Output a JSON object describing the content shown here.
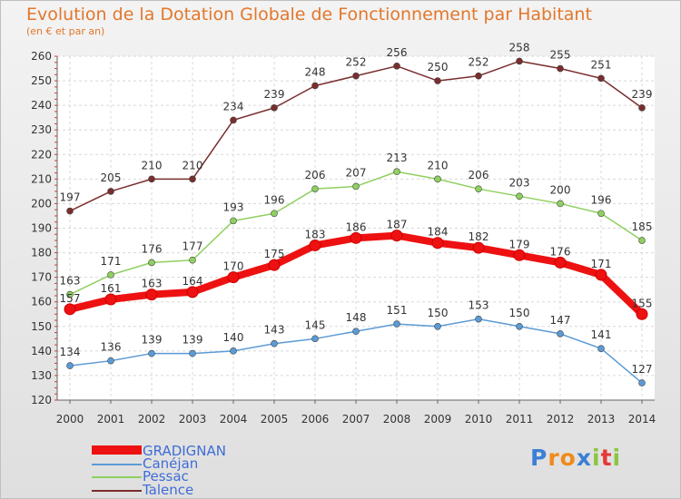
{
  "title": "Evolution de la Dotation Globale de Fonctionnement par Habitant",
  "subtitle": "(en € et par an)",
  "logo": {
    "text": "Proxiti",
    "letters": [
      "P",
      "r",
      "o",
      "x",
      "i",
      "t",
      "i"
    ],
    "colors": [
      "#3b7fd6",
      "#f08a1c",
      "#f08a1c",
      "#3b7fd6",
      "#8cc63f",
      "#e53935",
      "#8cc63f"
    ]
  },
  "chart_data": {
    "type": "line",
    "x": [
      2000,
      2001,
      2002,
      2003,
      2004,
      2005,
      2006,
      2007,
      2008,
      2009,
      2010,
      2011,
      2012,
      2013,
      2014
    ],
    "ylim": [
      120,
      260
    ],
    "yticks": [
      120,
      130,
      140,
      150,
      160,
      170,
      180,
      190,
      200,
      210,
      220,
      230,
      240,
      250,
      260
    ],
    "grid": true,
    "legend": "bottom-left",
    "series": [
      {
        "name": "GRADIGNAN",
        "color": "#ee1111",
        "values": [
          157,
          161,
          163,
          164,
          170,
          175,
          183,
          186,
          187,
          184,
          182,
          179,
          176,
          171,
          155
        ]
      },
      {
        "name": "Canéjan",
        "color": "#5b9bd5",
        "values": [
          134,
          136,
          139,
          139,
          140,
          143,
          145,
          148,
          151,
          150,
          153,
          150,
          147,
          141,
          127
        ]
      },
      {
        "name": "Pessac",
        "color": "#8fd060",
        "values": [
          163,
          171,
          176,
          177,
          193,
          196,
          206,
          207,
          213,
          210,
          206,
          203,
          200,
          196,
          185
        ]
      },
      {
        "name": "Talence",
        "color": "#7a2d2d",
        "values": [
          197,
          205,
          210,
          210,
          234,
          239,
          248,
          252,
          256,
          250,
          252,
          258,
          255,
          251,
          239
        ]
      }
    ]
  }
}
